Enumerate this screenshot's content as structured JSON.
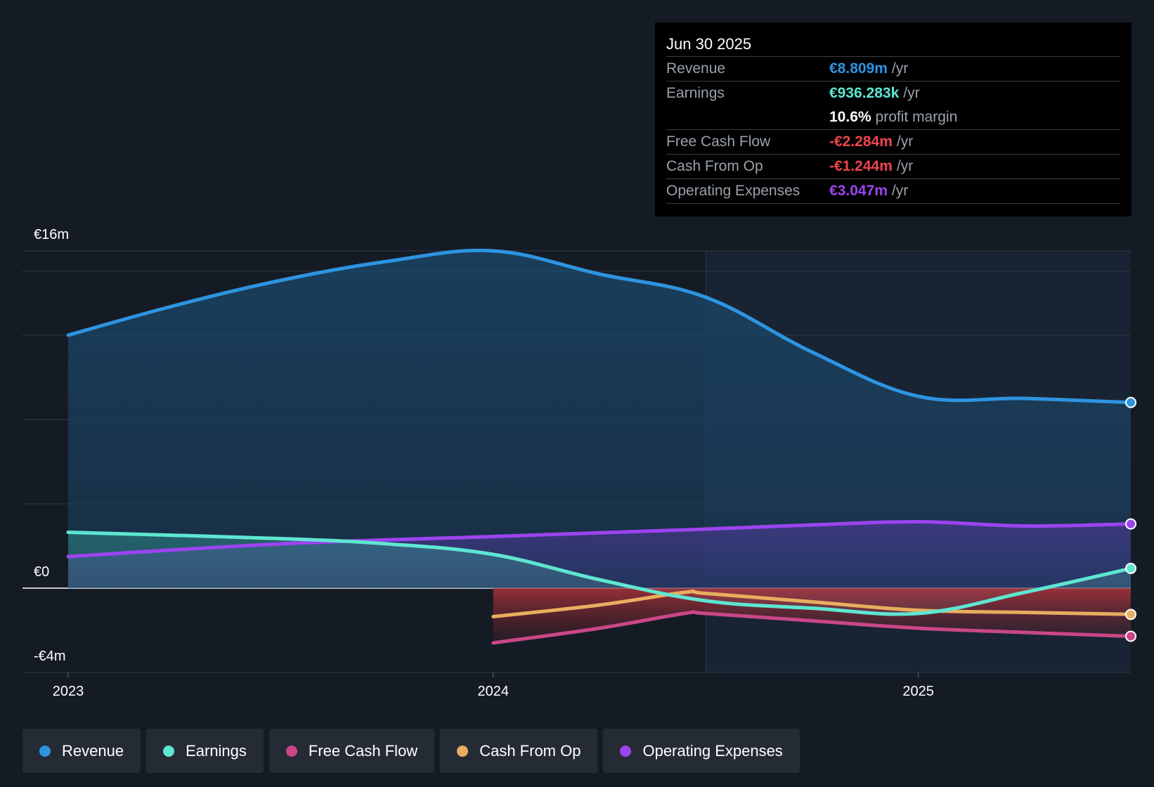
{
  "colors": {
    "revenue": "#2d94e1",
    "earnings": "#5ee6d1",
    "free_cash_flow": "#c94787",
    "cash_from_op": "#e9ae5e",
    "operating_expenses": "#9c44f0",
    "negative": "#ef4550"
  },
  "tooltip": {
    "date": "Jun 30 2025",
    "rows": [
      {
        "label": "Revenue",
        "value": "€8.809m",
        "unit": "/yr"
      },
      {
        "label": "Earnings",
        "value": "€936.283k",
        "unit": "/yr"
      },
      {
        "label": "",
        "value": "10.6%",
        "unit": "profit margin"
      },
      {
        "label": "Free Cash Flow",
        "value": "-€2.284m",
        "unit": "/yr"
      },
      {
        "label": "Cash From Op",
        "value": "-€1.244m",
        "unit": "/yr"
      },
      {
        "label": "Operating Expenses",
        "value": "€3.047m",
        "unit": "/yr"
      }
    ]
  },
  "legend": [
    {
      "label": "Revenue",
      "icon": "revenue-dot"
    },
    {
      "label": "Earnings",
      "icon": "earnings-dot"
    },
    {
      "label": "Free Cash Flow",
      "icon": "free-cash-flow-dot"
    },
    {
      "label": "Cash From Op",
      "icon": "cash-from-op-dot"
    },
    {
      "label": "Operating Expenses",
      "icon": "operating-expenses-dot"
    }
  ],
  "chart_data": {
    "type": "area",
    "title": "",
    "xlabel": "",
    "ylabel": "",
    "ylim": [
      -4,
      16
    ],
    "xlim": [
      2023.0,
      2025.5
    ],
    "y_tick_labels": [
      {
        "value": 16,
        "label": "€16m"
      },
      {
        "value": 0,
        "label": "€0"
      },
      {
        "value": -4,
        "label": "-€4m"
      }
    ],
    "x_tick_labels": [
      {
        "value": 2023.0,
        "label": "2023"
      },
      {
        "value": 2024.0,
        "label": "2024"
      },
      {
        "value": 2025.0,
        "label": "2025"
      }
    ],
    "highlight_start": 2024.5,
    "series": [
      {
        "name": "Revenue",
        "color_key": "revenue",
        "x": [
          2023.0,
          2023.25,
          2023.5,
          2023.75,
          2024.0,
          2024.25,
          2024.5,
          2024.75,
          2025.0,
          2025.25,
          2025.5
        ],
        "values": [
          12.0,
          13.4,
          14.6,
          15.5,
          16.0,
          14.9,
          13.8,
          11.2,
          9.1,
          9.0,
          8.809
        ]
      },
      {
        "name": "Earnings",
        "color_key": "earnings",
        "x": [
          2023.0,
          2023.5,
          2023.75,
          2024.0,
          2024.25,
          2024.5,
          2024.75,
          2025.0,
          2025.25,
          2025.5
        ],
        "values": [
          2.65,
          2.35,
          2.1,
          1.6,
          0.4,
          -0.6,
          -0.95,
          -1.2,
          -0.2,
          0.936
        ]
      },
      {
        "name": "Free Cash Flow",
        "color_key": "free_cash_flow",
        "x": [
          2024.0,
          2024.25,
          2024.45,
          2024.5,
          2024.75,
          2025.0,
          2025.25,
          2025.5
        ],
        "values": [
          -2.6,
          -1.9,
          -1.2,
          -1.2,
          -1.55,
          -1.9,
          -2.1,
          -2.284
        ]
      },
      {
        "name": "Cash From Op",
        "color_key": "cash_from_op",
        "x": [
          2024.0,
          2024.25,
          2024.45,
          2024.5,
          2024.75,
          2025.0,
          2025.25,
          2025.5
        ],
        "values": [
          -1.35,
          -0.8,
          -0.2,
          -0.25,
          -0.65,
          -1.05,
          -1.15,
          -1.244
        ]
      },
      {
        "name": "Operating Expenses",
        "color_key": "operating_expenses",
        "x": [
          2023.0,
          2023.5,
          2024.0,
          2024.5,
          2024.75,
          2025.0,
          2025.25,
          2025.5
        ],
        "values": [
          1.5,
          2.1,
          2.45,
          2.8,
          3.0,
          3.15,
          2.95,
          3.047
        ]
      }
    ]
  }
}
